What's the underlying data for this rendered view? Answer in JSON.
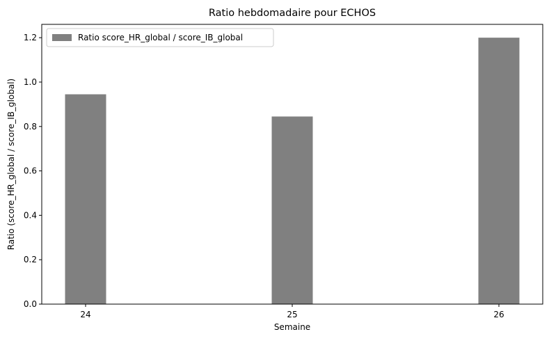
{
  "chart_data": {
    "type": "bar",
    "title": "Ratio hebdomadaire pour ECHOS",
    "xlabel": "Semaine",
    "ylabel": "Ratio (score_HR_global / score_IB_global)",
    "categories": [
      "24",
      "25",
      "26"
    ],
    "series": [
      {
        "name": "Ratio score_HR_global / score_IB_global",
        "values": [
          0.945,
          0.845,
          1.2
        ],
        "color": "#808080"
      }
    ],
    "ylim": [
      0,
      1.26
    ],
    "yticks": [
      "0.0",
      "0.2",
      "0.4",
      "0.6",
      "0.8",
      "1.0",
      "1.2"
    ],
    "grid": false,
    "legend_position": "top-left"
  }
}
